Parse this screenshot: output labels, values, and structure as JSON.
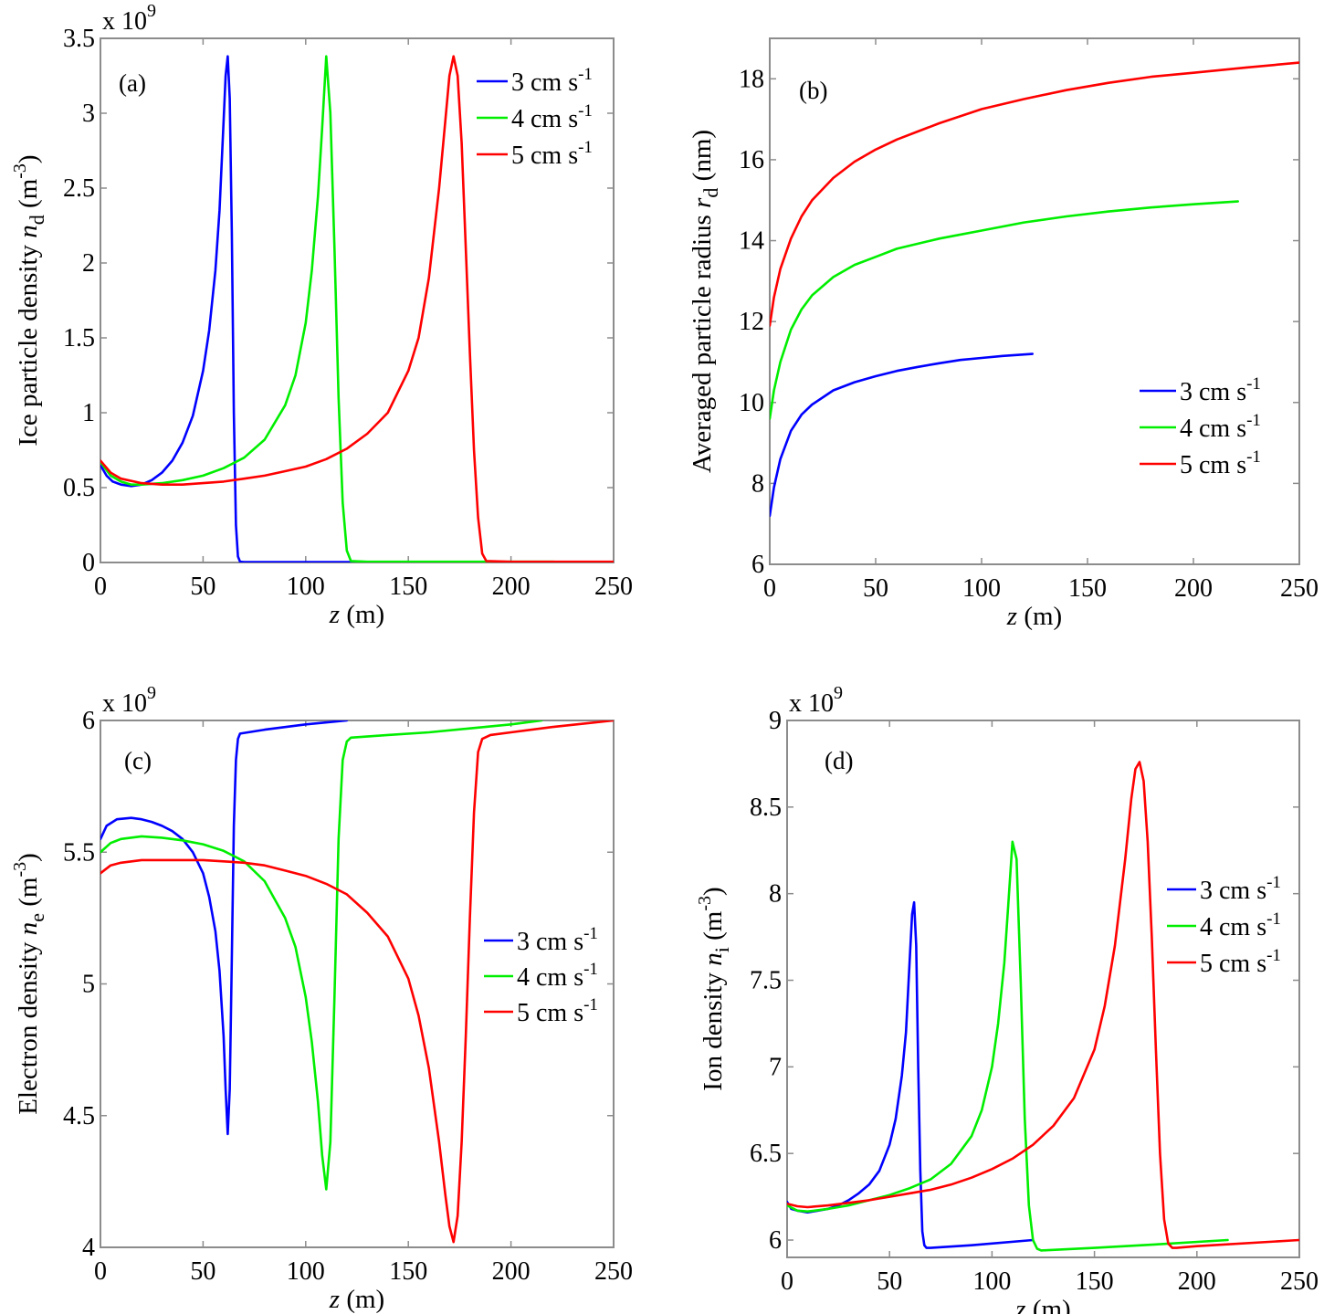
{
  "chart_data": [
    {
      "id": "a",
      "type": "line",
      "panel_label": "(a)",
      "xlabel_var": "z",
      "xlabel_unit": " (m)",
      "ylabel_text": "Ice particle density ",
      "ylabel_var": "n",
      "ylabel_sub": "d",
      "ylabel_unit": " (m",
      "ylabel_unit_sup": "-3",
      "ylabel_close": ")",
      "exponent_label": "x 10",
      "exponent_power": "9",
      "xlim": [
        0,
        250
      ],
      "ylim": [
        0,
        3.5
      ],
      "xticks": [
        0,
        50,
        100,
        150,
        200,
        250
      ],
      "yticks": [
        0,
        0.5,
        1,
        1.5,
        2,
        2.5,
        3,
        3.5
      ],
      "ytick_labels": [
        "0",
        "0.5",
        "1",
        "1.5",
        "2",
        "2.5",
        "3",
        "3.5"
      ],
      "legend_position": "top-right",
      "series": [
        {
          "name": "3 cm s",
          "sup": "-1",
          "color": "#0000ff",
          "x": [
            0,
            3,
            6,
            10,
            15,
            20,
            25,
            30,
            35,
            40,
            45,
            50,
            53,
            56,
            58,
            60,
            61,
            62,
            63,
            64,
            65,
            66,
            67,
            68,
            70,
            80,
            100,
            124
          ],
          "y": [
            0.65,
            0.58,
            0.54,
            0.52,
            0.51,
            0.52,
            0.55,
            0.6,
            0.68,
            0.8,
            0.98,
            1.28,
            1.55,
            1.95,
            2.35,
            2.95,
            3.25,
            3.38,
            3.1,
            2.2,
            1.0,
            0.25,
            0.04,
            0.005,
            0.003,
            0.003,
            0.003,
            0.003
          ]
        },
        {
          "name": "4 cm s",
          "sup": "-1",
          "color": "#00ee00",
          "x": [
            0,
            5,
            10,
            15,
            20,
            30,
            40,
            50,
            60,
            70,
            80,
            90,
            95,
            100,
            103,
            106,
            108,
            110,
            112,
            114,
            116,
            118,
            120,
            122,
            130,
            160,
            200,
            221
          ],
          "y": [
            0.67,
            0.58,
            0.54,
            0.52,
            0.52,
            0.53,
            0.55,
            0.58,
            0.63,
            0.7,
            0.82,
            1.05,
            1.25,
            1.6,
            1.95,
            2.45,
            2.9,
            3.38,
            3.0,
            2.1,
            1.1,
            0.4,
            0.08,
            0.01,
            0.005,
            0.005,
            0.005,
            0.005
          ]
        },
        {
          "name": "5 cm s",
          "sup": "-1",
          "color": "#ff0000",
          "x": [
            0,
            5,
            10,
            20,
            30,
            40,
            50,
            60,
            70,
            80,
            90,
            100,
            110,
            120,
            130,
            140,
            150,
            155,
            160,
            165,
            168,
            170,
            172,
            174,
            176,
            178,
            180,
            182,
            184,
            186,
            188,
            200,
            250
          ],
          "y": [
            0.68,
            0.6,
            0.56,
            0.53,
            0.52,
            0.52,
            0.53,
            0.54,
            0.56,
            0.58,
            0.61,
            0.64,
            0.69,
            0.76,
            0.86,
            1.0,
            1.28,
            1.5,
            1.9,
            2.5,
            2.95,
            3.25,
            3.38,
            3.25,
            2.8,
            2.1,
            1.4,
            0.75,
            0.3,
            0.06,
            0.01,
            0.005,
            0.005
          ]
        }
      ]
    },
    {
      "id": "b",
      "type": "line",
      "panel_label": "(b)",
      "xlabel_var": "z",
      "xlabel_unit": " (m)",
      "ylabel_text": "Averaged particle radius ",
      "ylabel_var": "r",
      "ylabel_sub": "d",
      "ylabel_unit": " (nm)",
      "ylabel_unit_sup": "",
      "ylabel_close": "",
      "exponent_label": "",
      "exponent_power": "",
      "xlim": [
        0,
        250
      ],
      "ylim": [
        6,
        19
      ],
      "xticks": [
        0,
        50,
        100,
        150,
        200,
        250
      ],
      "yticks": [
        6,
        8,
        10,
        12,
        14,
        16,
        18
      ],
      "ytick_labels": [
        "6",
        "8",
        "10",
        "12",
        "14",
        "16",
        "18"
      ],
      "legend_position": "center-right",
      "series": [
        {
          "name": "3 cm s",
          "sup": "-1",
          "color": "#0000ff",
          "x": [
            0,
            2,
            5,
            10,
            15,
            20,
            30,
            40,
            50,
            60,
            70,
            80,
            90,
            100,
            110,
            124
          ],
          "y": [
            7.2,
            7.9,
            8.6,
            9.3,
            9.7,
            9.95,
            10.3,
            10.5,
            10.65,
            10.78,
            10.88,
            10.97,
            11.05,
            11.1,
            11.15,
            11.2
          ]
        },
        {
          "name": "4 cm s",
          "sup": "-1",
          "color": "#00ee00",
          "x": [
            0,
            2,
            5,
            10,
            15,
            20,
            30,
            40,
            50,
            60,
            80,
            100,
            120,
            140,
            160,
            180,
            200,
            221
          ],
          "y": [
            9.6,
            10.3,
            11.0,
            11.8,
            12.3,
            12.65,
            13.1,
            13.4,
            13.6,
            13.8,
            14.05,
            14.25,
            14.45,
            14.6,
            14.72,
            14.82,
            14.9,
            14.97
          ]
        },
        {
          "name": "5 cm s",
          "sup": "-1",
          "color": "#ff0000",
          "x": [
            0,
            2,
            5,
            10,
            15,
            20,
            30,
            40,
            50,
            60,
            70,
            80,
            100,
            120,
            140,
            160,
            180,
            200,
            225,
            250
          ],
          "y": [
            11.9,
            12.6,
            13.3,
            14.05,
            14.6,
            15.0,
            15.55,
            15.95,
            16.25,
            16.5,
            16.7,
            16.9,
            17.25,
            17.5,
            17.72,
            17.9,
            18.05,
            18.15,
            18.28,
            18.4
          ]
        }
      ]
    },
    {
      "id": "c",
      "type": "line",
      "panel_label": "(c)",
      "xlabel_var": "z",
      "xlabel_unit": " (m)",
      "ylabel_text": "Electron density ",
      "ylabel_var": "n",
      "ylabel_sub": "e",
      "ylabel_unit": " (m",
      "ylabel_unit_sup": "-3",
      "ylabel_close": ")",
      "exponent_label": "x 10",
      "exponent_power": "9",
      "xlim": [
        0,
        250
      ],
      "ylim": [
        4,
        6
      ],
      "xticks": [
        0,
        50,
        100,
        150,
        200,
        250
      ],
      "yticks": [
        4,
        4.5,
        5,
        5.5,
        6
      ],
      "ytick_labels": [
        "4",
        "4.5",
        "5",
        "5.5",
        "6"
      ],
      "legend_position": "center-right",
      "series": [
        {
          "name": "3 cm s",
          "sup": "-1",
          "color": "#0000ff",
          "x": [
            0,
            3,
            8,
            15,
            20,
            25,
            30,
            35,
            40,
            45,
            50,
            53,
            56,
            58,
            60,
            61,
            62,
            63,
            64,
            65,
            66,
            67,
            68,
            80,
            100,
            120
          ],
          "y": [
            5.55,
            5.6,
            5.625,
            5.63,
            5.625,
            5.615,
            5.6,
            5.58,
            5.55,
            5.5,
            5.42,
            5.33,
            5.2,
            5.05,
            4.8,
            4.6,
            4.43,
            4.6,
            5.1,
            5.6,
            5.85,
            5.93,
            5.95,
            5.965,
            5.985,
            6.0
          ]
        },
        {
          "name": "4 cm s",
          "sup": "-1",
          "color": "#00ee00",
          "x": [
            0,
            5,
            10,
            20,
            30,
            40,
            50,
            60,
            70,
            80,
            90,
            95,
            100,
            103,
            106,
            108,
            110,
            112,
            114,
            116,
            118,
            120,
            122,
            140,
            160,
            180,
            200,
            215
          ],
          "y": [
            5.5,
            5.535,
            5.55,
            5.56,
            5.555,
            5.545,
            5.53,
            5.505,
            5.465,
            5.39,
            5.25,
            5.14,
            4.95,
            4.78,
            4.55,
            4.35,
            4.22,
            4.4,
            4.95,
            5.55,
            5.85,
            5.92,
            5.935,
            5.945,
            5.955,
            5.97,
            5.985,
            6.0
          ]
        },
        {
          "name": "5 cm s",
          "sup": "-1",
          "color": "#ff0000",
          "x": [
            0,
            5,
            10,
            20,
            30,
            40,
            50,
            60,
            70,
            80,
            90,
            100,
            110,
            120,
            130,
            140,
            150,
            155,
            160,
            165,
            168,
            170,
            172,
            174,
            176,
            178,
            180,
            182,
            184,
            186,
            190,
            200,
            220,
            250
          ],
          "y": [
            5.42,
            5.45,
            5.46,
            5.47,
            5.47,
            5.47,
            5.47,
            5.465,
            5.46,
            5.45,
            5.43,
            5.41,
            5.38,
            5.34,
            5.27,
            5.18,
            5.02,
            4.88,
            4.68,
            4.4,
            4.2,
            4.08,
            4.02,
            4.12,
            4.4,
            4.8,
            5.25,
            5.65,
            5.88,
            5.93,
            5.945,
            5.955,
            5.975,
            6.0
          ]
        }
      ]
    },
    {
      "id": "d",
      "type": "line",
      "panel_label": "(d)",
      "xlabel_var": "z",
      "xlabel_unit": " (m)",
      "ylabel_text": "Ion density ",
      "ylabel_var": "n",
      "ylabel_sub": "i",
      "ylabel_unit": " (m",
      "ylabel_unit_sup": "-3",
      "ylabel_close": ")",
      "exponent_label": "x 10",
      "exponent_power": "9",
      "xlim": [
        0,
        250
      ],
      "ylim": [
        5.9,
        9
      ],
      "xticks": [
        0,
        50,
        100,
        150,
        200,
        250
      ],
      "yticks": [
        6,
        6.5,
        7,
        7.5,
        8,
        8.5,
        9
      ],
      "ytick_labels": [
        "6",
        "6.5",
        "7",
        "7.5",
        "8",
        "8.5",
        "9"
      ],
      "legend_position": "center-right",
      "series": [
        {
          "name": "3 cm s",
          "sup": "-1",
          "color": "#0000ff",
          "x": [
            0,
            2,
            5,
            10,
            15,
            20,
            25,
            30,
            35,
            40,
            45,
            50,
            53,
            56,
            58,
            60,
            61,
            62,
            63,
            64,
            65,
            66,
            67,
            68,
            70,
            90,
            120
          ],
          "y": [
            6.22,
            6.18,
            6.17,
            6.16,
            6.17,
            6.18,
            6.2,
            6.23,
            6.27,
            6.32,
            6.4,
            6.55,
            6.7,
            6.95,
            7.2,
            7.65,
            7.88,
            7.95,
            7.7,
            7.0,
            6.4,
            6.05,
            5.97,
            5.955,
            5.955,
            5.97,
            6.0
          ]
        },
        {
          "name": "4 cm s",
          "sup": "-1",
          "color": "#00ee00",
          "x": [
            0,
            5,
            10,
            20,
            30,
            40,
            50,
            60,
            70,
            80,
            90,
            95,
            100,
            103,
            106,
            108,
            110,
            112,
            114,
            116,
            118,
            120,
            122,
            124,
            150,
            180,
            215
          ],
          "y": [
            6.2,
            6.17,
            6.165,
            6.18,
            6.2,
            6.23,
            6.26,
            6.3,
            6.35,
            6.44,
            6.6,
            6.75,
            7.0,
            7.25,
            7.6,
            7.95,
            8.3,
            8.2,
            7.5,
            6.7,
            6.2,
            6.0,
            5.95,
            5.94,
            5.955,
            5.975,
            6.0
          ]
        },
        {
          "name": "5 cm s",
          "sup": "-1",
          "color": "#ff0000",
          "x": [
            0,
            5,
            10,
            20,
            30,
            40,
            50,
            60,
            70,
            80,
            90,
            100,
            110,
            120,
            130,
            140,
            150,
            155,
            160,
            165,
            168,
            170,
            172,
            174,
            176,
            178,
            180,
            182,
            184,
            186,
            188,
            190,
            200,
            250
          ],
          "y": [
            6.21,
            6.195,
            6.19,
            6.2,
            6.215,
            6.23,
            6.25,
            6.27,
            6.29,
            6.32,
            6.36,
            6.41,
            6.47,
            6.55,
            6.66,
            6.82,
            7.1,
            7.35,
            7.7,
            8.2,
            8.55,
            8.72,
            8.76,
            8.65,
            8.3,
            7.75,
            7.1,
            6.5,
            6.12,
            5.98,
            5.955,
            5.955,
            5.965,
            6.0
          ]
        }
      ]
    }
  ]
}
